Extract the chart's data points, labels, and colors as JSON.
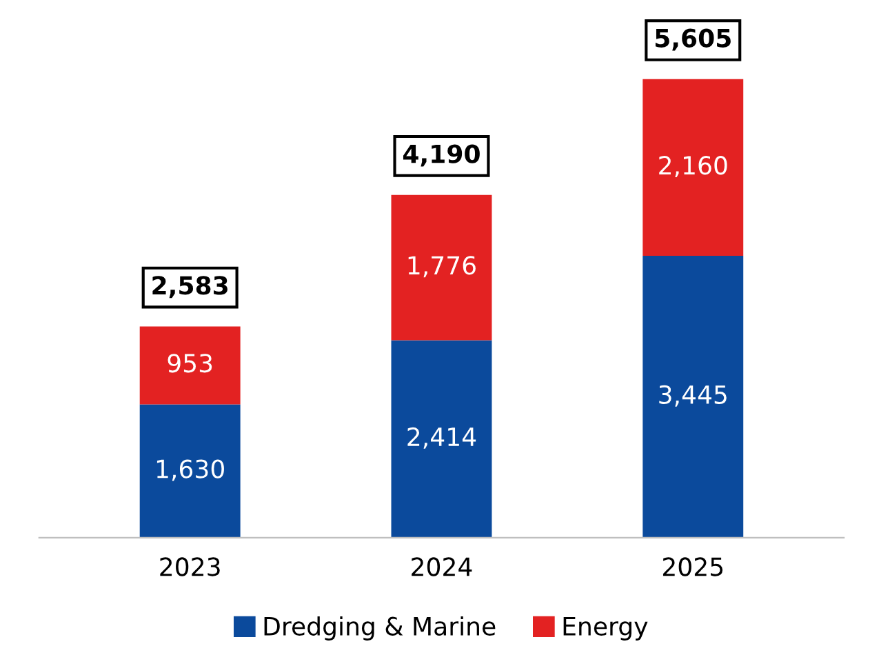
{
  "chart_data": {
    "type": "bar",
    "stacked": true,
    "legend": "bottom",
    "grid": false,
    "categories": [
      "2023",
      "2024",
      "2025"
    ],
    "series": [
      {
        "name": "Dredging & Marine",
        "color": "#0b4a9c",
        "values": [
          1630,
          2414,
          3445
        ],
        "value_labels": [
          "1,630",
          "2,414",
          "3,445"
        ]
      },
      {
        "name": "Energy",
        "color": "#e32222",
        "values": [
          953,
          1776,
          2160
        ],
        "value_labels": [
          "953",
          "1,776",
          "2,160"
        ]
      }
    ],
    "totals": [
      "2,583",
      "4,190",
      "5,605"
    ]
  }
}
